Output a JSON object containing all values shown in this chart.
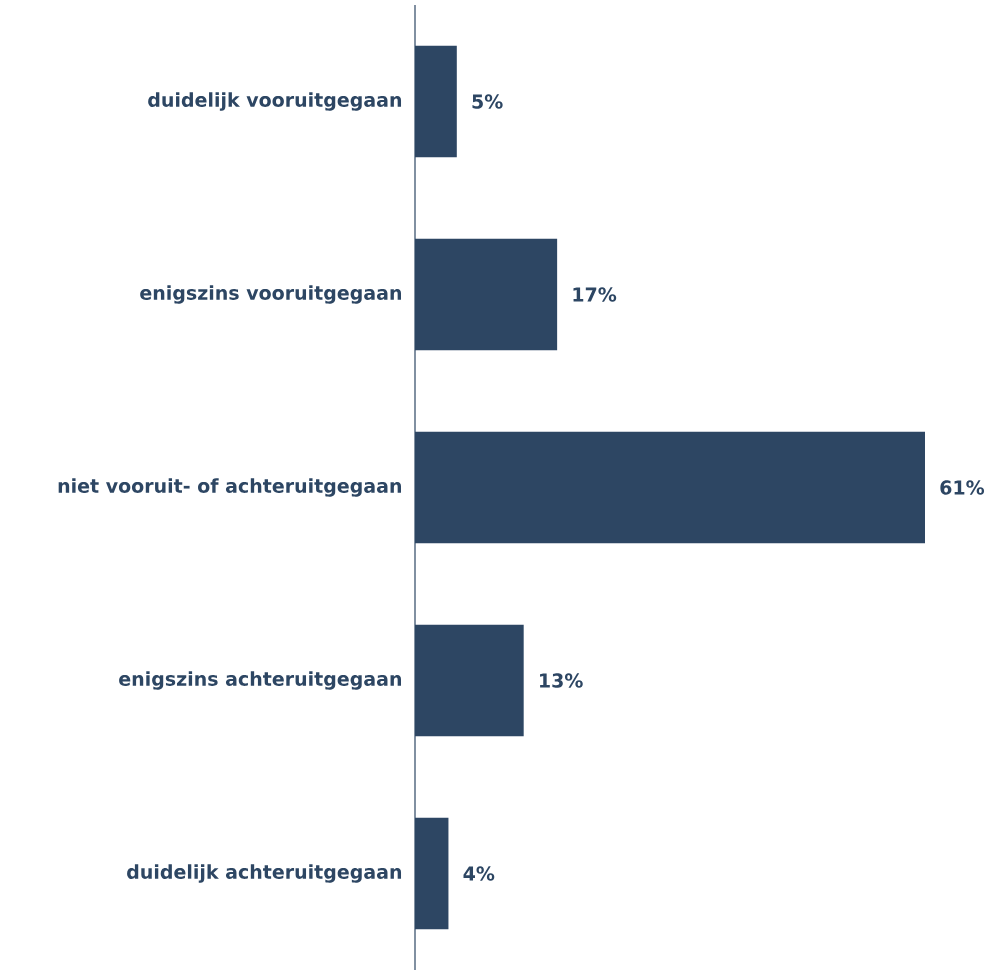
{
  "chart_data": {
    "type": "bar",
    "orientation": "horizontal",
    "categories": [
      "duidelijk vooruitgegaan",
      "enigszins vooruitgegaan",
      "niet vooruit- of achteruitgegaan",
      "enigszins achteruitgegaan",
      "duidelijk achteruitgegaan"
    ],
    "values": [
      5,
      17,
      61,
      13,
      4
    ],
    "value_labels": [
      "5%",
      "17%",
      "61%",
      "13%",
      "4%"
    ],
    "color": "#2d4663",
    "tick_labels": "y"
  }
}
